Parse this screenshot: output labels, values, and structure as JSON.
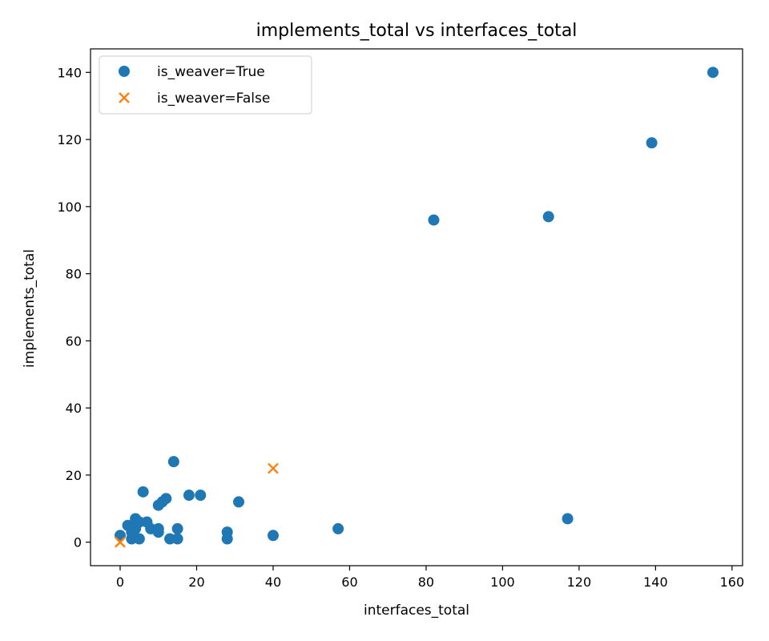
{
  "chart_data": {
    "type": "scatter",
    "title": "implements_total vs interfaces_total",
    "xlabel": "interfaces_total",
    "ylabel": "implements_total",
    "xlim": [
      -7.75,
      162.75
    ],
    "ylim": [
      -7,
      147
    ],
    "xticks": [
      0,
      20,
      40,
      60,
      80,
      100,
      120,
      140,
      160
    ],
    "yticks": [
      0,
      20,
      40,
      60,
      80,
      100,
      120,
      140
    ],
    "grid": false,
    "legend_position": "upper-left",
    "series": [
      {
        "name": "is_weaver=True",
        "marker": "circle",
        "color": "#1f77b4",
        "points": [
          [
            0,
            2
          ],
          [
            2,
            5
          ],
          [
            3,
            3
          ],
          [
            3,
            1
          ],
          [
            4,
            7
          ],
          [
            4,
            4
          ],
          [
            5,
            6
          ],
          [
            5,
            1
          ],
          [
            6,
            15
          ],
          [
            7,
            6
          ],
          [
            8,
            4
          ],
          [
            10,
            11
          ],
          [
            10,
            4
          ],
          [
            10,
            3
          ],
          [
            11,
            12
          ],
          [
            12,
            13
          ],
          [
            13,
            1
          ],
          [
            14,
            24
          ],
          [
            15,
            4
          ],
          [
            15,
            1
          ],
          [
            18,
            14
          ],
          [
            21,
            14
          ],
          [
            28,
            3
          ],
          [
            28,
            1
          ],
          [
            31,
            12
          ],
          [
            40,
            2
          ],
          [
            57,
            4
          ],
          [
            82,
            96
          ],
          [
            112,
            97
          ],
          [
            117,
            7
          ],
          [
            139,
            119
          ],
          [
            155,
            140
          ]
        ]
      },
      {
        "name": "is_weaver=False",
        "marker": "x",
        "color": "#ff7f0e",
        "points": [
          [
            0,
            0
          ],
          [
            0,
            0
          ],
          [
            40,
            22
          ]
        ]
      }
    ]
  }
}
